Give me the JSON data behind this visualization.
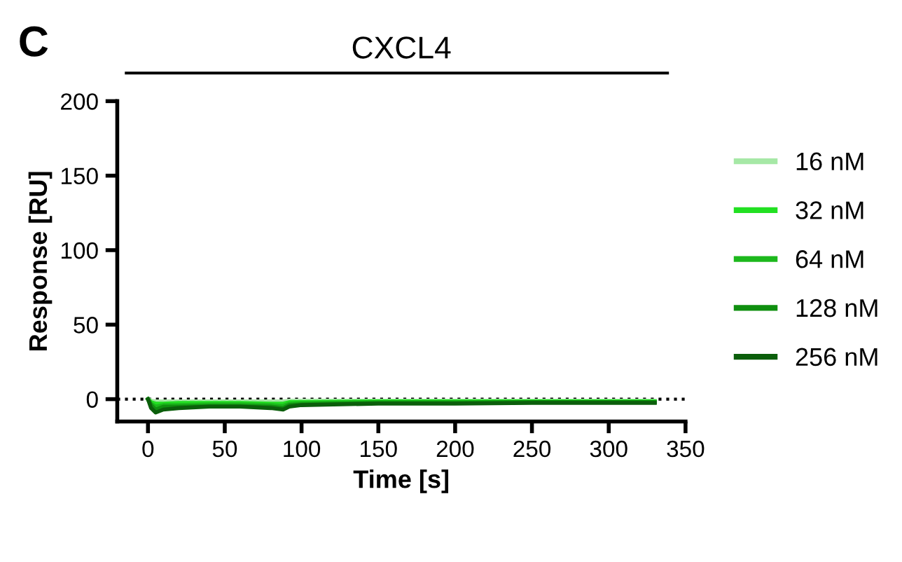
{
  "chart_data": {
    "type": "line",
    "title": "CXCL4",
    "xlabel": "Time [s]",
    "ylabel": "Response [RU]",
    "annotations": [
      "C"
    ],
    "x": [
      0,
      2,
      5,
      10,
      20,
      40,
      60,
      80,
      88,
      92,
      100,
      150,
      200,
      250,
      300,
      330
    ],
    "series": [
      {
        "name": "16 nM",
        "color": "#a6e8a6",
        "values": [
          0,
          -1,
          -1.5,
          -1.5,
          -1.5,
          -1.5,
          -1.5,
          -1.5,
          -1.5,
          -1,
          -1,
          -1,
          -1,
          -1,
          -1,
          -1
        ]
      },
      {
        "name": "32 nM",
        "color": "#22e022",
        "values": [
          0,
          -2,
          -3,
          -3,
          -2.5,
          -2.5,
          -2.5,
          -3,
          -3,
          -2,
          -2,
          -1.5,
          -1.5,
          -1.5,
          -1.5,
          -1.5
        ]
      },
      {
        "name": "64 nM",
        "color": "#1cb81c",
        "values": [
          0,
          -3,
          -5,
          -4,
          -4,
          -3.5,
          -3.5,
          -4,
          -4.5,
          -3,
          -2.5,
          -2,
          -2,
          -2,
          -2,
          -2
        ]
      },
      {
        "name": "128 nM",
        "color": "#0f8f0f",
        "values": [
          0,
          -4,
          -7,
          -5,
          -5,
          -4.5,
          -4.5,
          -5,
          -6,
          -4,
          -3.5,
          -2.5,
          -2.5,
          -2,
          -2,
          -2
        ]
      },
      {
        "name": "256 nM",
        "color": "#0b5e0b",
        "values": [
          0,
          -6,
          -9,
          -7,
          -6,
          -5,
          -5,
          -6,
          -7,
          -5,
          -4,
          -3,
          -3,
          -2.5,
          -2.5,
          -2.5
        ]
      }
    ],
    "ref_lines": [
      {
        "axis": "y",
        "value": 0,
        "color": "#000000",
        "line_style": "dotted"
      }
    ],
    "xlim": [
      -20,
      350
    ],
    "xticks": [
      0,
      50,
      100,
      150,
      200,
      250,
      300,
      350
    ],
    "ylim": [
      -15,
      200
    ],
    "yticks": [
      0,
      50,
      100,
      150,
      200
    ],
    "grid": false,
    "legend": "right",
    "marker": "none",
    "line_style": "solid"
  }
}
